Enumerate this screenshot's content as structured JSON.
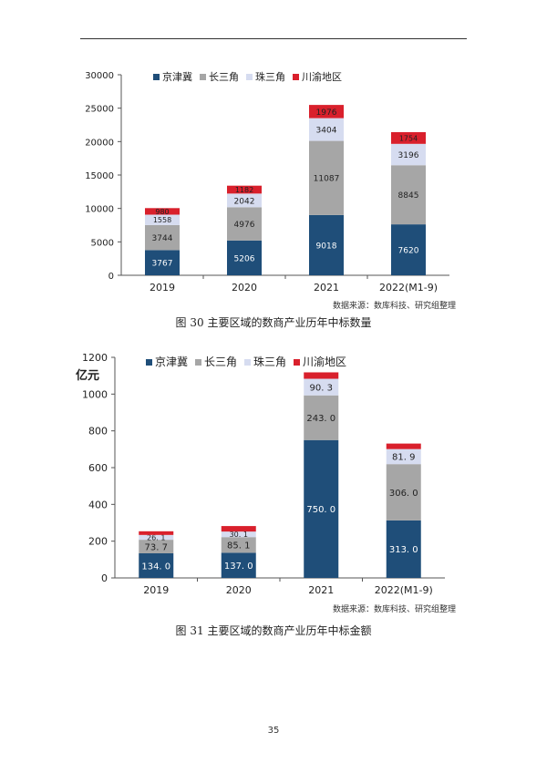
{
  "figures": [
    {
      "caption": "图 30  主要区域的数商产业历年中标数量",
      "source": "数据来源：数库科技、研究组整理"
    },
    {
      "caption": "图 31  主要区域的数商产业历年中标金额",
      "source": "数据来源：数库科技、研究组整理"
    }
  ],
  "page_number": "35",
  "chart_data": [
    {
      "type": "bar",
      "stacked": true,
      "title": "",
      "xlabel": "",
      "ylabel": "",
      "categories": [
        "2019",
        "2020",
        "2021",
        "2022(M1-9)"
      ],
      "ylim": [
        0,
        30000
      ],
      "yticks": [
        "0",
        "5000",
        "10000",
        "15000",
        "20000",
        "25000",
        "30000"
      ],
      "legend_position": "top",
      "grid": false,
      "series": [
        {
          "name": "京津冀",
          "color": "#1f4e79",
          "values": [
            3767,
            5206,
            9018,
            7620
          ],
          "labels": [
            "3767",
            "5206",
            "9018",
            "7620"
          ],
          "label_color": "#ffffff"
        },
        {
          "name": "长三角",
          "color": "#a6a6a6",
          "values": [
            3744,
            4976,
            11087,
            8845
          ],
          "labels": [
            "3744",
            "4976",
            "11087",
            "8845"
          ],
          "label_color": "#222222"
        },
        {
          "name": "珠三角",
          "color": "#d6dcf0",
          "values": [
            1558,
            2042,
            3404,
            3196
          ],
          "labels": [
            "1558",
            "2042",
            "3404",
            "3196"
          ],
          "label_color": "#222222"
        },
        {
          "name": "川渝地区",
          "color": "#d9202c",
          "values": [
            980,
            1182,
            1976,
            1754
          ],
          "labels": [
            "980",
            "1182",
            "1976",
            "1754"
          ],
          "label_color": "#222222"
        }
      ]
    },
    {
      "type": "bar",
      "stacked": true,
      "title": "",
      "xlabel": "",
      "ylabel": "亿元",
      "categories": [
        "2019",
        "2020",
        "2021",
        "2022(M1-9)"
      ],
      "ylim": [
        0,
        1200
      ],
      "yticks": [
        "0",
        "200",
        "400",
        "600",
        "800",
        "1000",
        "1200"
      ],
      "legend_position": "top",
      "grid": false,
      "series": [
        {
          "name": "京津冀",
          "color": "#1f4e79",
          "values": [
            134.0,
            137.0,
            750.0,
            313.0
          ],
          "labels": [
            "134. 0",
            "137. 0",
            "750. 0",
            "313. 0"
          ],
          "label_color": "#ffffff"
        },
        {
          "name": "长三角",
          "color": "#a6a6a6",
          "values": [
            73.7,
            85.1,
            243.0,
            306.0
          ],
          "labels": [
            "73. 7",
            "85. 1",
            "243. 0",
            "306. 0"
          ],
          "label_color": "#222222"
        },
        {
          "name": "珠三角",
          "color": "#d6dcf0",
          "values": [
            26.1,
            30.1,
            90.3,
            81.9
          ],
          "labels": [
            "26. 1",
            "30. 1",
            "90. 3",
            "81. 9"
          ],
          "label_color": "#222222"
        },
        {
          "name": "川渝地区",
          "color": "#d9202c",
          "values": [
            20.0,
            30.0,
            35.0,
            30.0
          ],
          "labels": [
            "",
            "",
            "",
            ""
          ],
          "label_color": "#222222"
        }
      ]
    }
  ]
}
